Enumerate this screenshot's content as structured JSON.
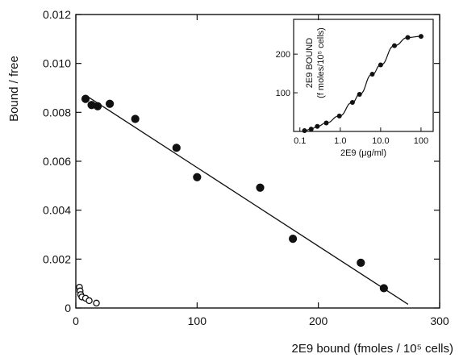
{
  "chart_data": [
    {
      "type": "scatter",
      "xlabel": "2E9 bound (fmoles / 10⁵ cells)",
      "ylabel": "Bound / free",
      "xlim": [
        0,
        300
      ],
      "ylim": [
        0,
        0.012
      ],
      "x_ticks": [
        0,
        100,
        200,
        300
      ],
      "x_tick_labels": [
        "0",
        "100",
        "200",
        "300"
      ],
      "y_ticks": [
        0,
        0.002,
        0.004,
        0.006,
        0.008,
        0.01,
        0.012
      ],
      "y_tick_labels": [
        "0",
        "0.002",
        "0.004",
        "0.006",
        "0.008",
        "0.010",
        "0.012"
      ],
      "grid": false,
      "series": [
        {
          "marker": "filled-circle",
          "color": "#111111",
          "points": [
            {
              "x": 8,
              "y": 0.00855
            },
            {
              "x": 13,
              "y": 0.0083
            },
            {
              "x": 18,
              "y": 0.00825
            },
            {
              "x": 28,
              "y": 0.00835
            },
            {
              "x": 49,
              "y": 0.00773
            },
            {
              "x": 83,
              "y": 0.00655
            },
            {
              "x": 100,
              "y": 0.00535
            },
            {
              "x": 152,
              "y": 0.00492
            },
            {
              "x": 179,
              "y": 0.00283
            },
            {
              "x": 235,
              "y": 0.00185
            },
            {
              "x": 254,
              "y": 0.00081
            }
          ]
        },
        {
          "marker": "open-circle",
          "color": "#111111",
          "points": [
            {
              "x": 3,
              "y": 0.00085
            },
            {
              "x": 3.5,
              "y": 0.0007
            },
            {
              "x": 4,
              "y": 0.00055
            },
            {
              "x": 5,
              "y": 0.00045
            },
            {
              "x": 8,
              "y": 0.0004
            },
            {
              "x": 11,
              "y": 0.0003
            },
            {
              "x": 17,
              "y": 0.0002
            }
          ]
        }
      ],
      "fit_line": {
        "x": [
          8,
          274
        ],
        "y": [
          0.0087,
          0.00015
        ]
      }
    },
    {
      "type": "line",
      "xlabel": "2E9 (μg/ml)",
      "ylabel": "2E9 BOUND\n(f moles/10⁵ cells)",
      "x_scale": "log",
      "xlim": [
        0.07,
        200
      ],
      "ylim": [
        0,
        290
      ],
      "x_ticks": [
        0.1,
        1,
        10,
        100
      ],
      "x_tick_labels": [
        "0.1",
        "1.0",
        "10.0",
        "100"
      ],
      "y_ticks": [
        100,
        200
      ],
      "y_tick_labels": [
        "100",
        "200"
      ],
      "grid": false,
      "series": [
        {
          "marker": "filled-circle",
          "color": "#111111",
          "points": [
            {
              "x": 0.13,
              "y": 2
            },
            {
              "x": 0.19,
              "y": 6
            },
            {
              "x": 0.27,
              "y": 13
            },
            {
              "x": 0.45,
              "y": 22
            },
            {
              "x": 0.95,
              "y": 40
            },
            {
              "x": 2.0,
              "y": 75
            },
            {
              "x": 3.0,
              "y": 96
            },
            {
              "x": 6.2,
              "y": 148
            },
            {
              "x": 10.0,
              "y": 172
            },
            {
              "x": 22,
              "y": 222
            },
            {
              "x": 47,
              "y": 243
            },
            {
              "x": 100,
              "y": 246
            }
          ]
        }
      ]
    }
  ]
}
